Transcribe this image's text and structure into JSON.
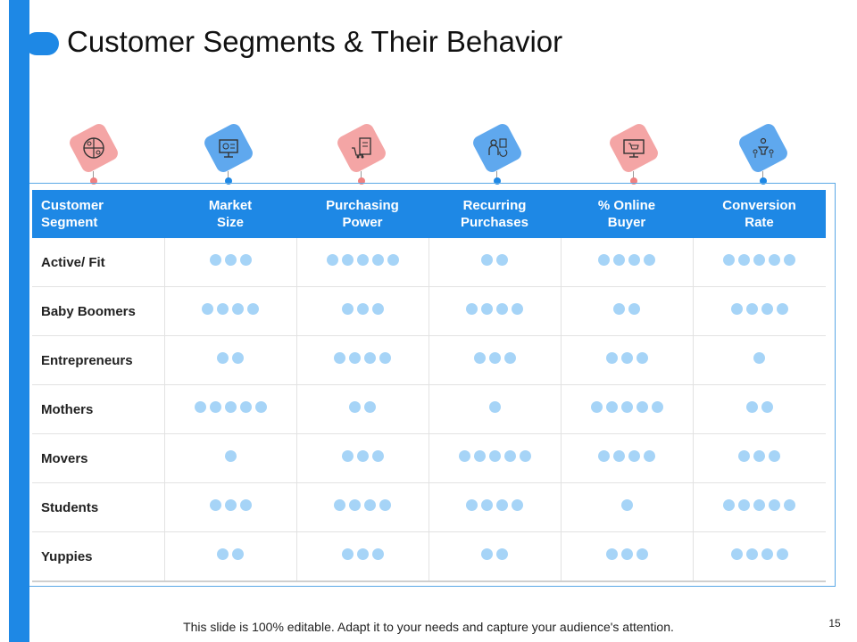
{
  "slide": {
    "title": "Customer Segments & Their Behavior",
    "footer": "This slide is 100% editable. Adapt it to your needs and capture your audience's attention.",
    "page_number": "15"
  },
  "colors": {
    "accent": "#1e88e5",
    "pink_tile": "#f4a5a5",
    "blue_tile": "#5fa8ee",
    "dot": "#a6d4f7"
  },
  "icons": [
    {
      "name": "segments-pie-icon",
      "tone": "pink"
    },
    {
      "name": "market-monitor-icon",
      "tone": "blue"
    },
    {
      "name": "shopping-receipt-icon",
      "tone": "pink"
    },
    {
      "name": "recurring-purchase-icon",
      "tone": "blue"
    },
    {
      "name": "online-store-icon",
      "tone": "pink"
    },
    {
      "name": "conversion-funnel-icon",
      "tone": "blue"
    }
  ],
  "table": {
    "headers": [
      [
        "Customer",
        "Segment"
      ],
      [
        "Market",
        "Size"
      ],
      [
        "Purchasing",
        "Power"
      ],
      [
        "Recurring",
        "Purchases"
      ],
      [
        "% Online",
        "Buyer"
      ],
      [
        "Conversion",
        "Rate"
      ]
    ],
    "rows": [
      {
        "segment": "Active/ Fit",
        "ratings": [
          3,
          5,
          2,
          4,
          5
        ]
      },
      {
        "segment": "Baby Boomers",
        "ratings": [
          4,
          3,
          4,
          2,
          4
        ]
      },
      {
        "segment": "Entrepreneurs",
        "ratings": [
          2,
          4,
          3,
          3,
          1
        ]
      },
      {
        "segment": "Mothers",
        "ratings": [
          5,
          2,
          1,
          5,
          2
        ]
      },
      {
        "segment": "Movers",
        "ratings": [
          1,
          3,
          5,
          4,
          3
        ]
      },
      {
        "segment": "Students",
        "ratings": [
          3,
          4,
          4,
          1,
          5
        ]
      },
      {
        "segment": "Yuppies",
        "ratings": [
          2,
          3,
          2,
          3,
          4
        ]
      }
    ]
  }
}
